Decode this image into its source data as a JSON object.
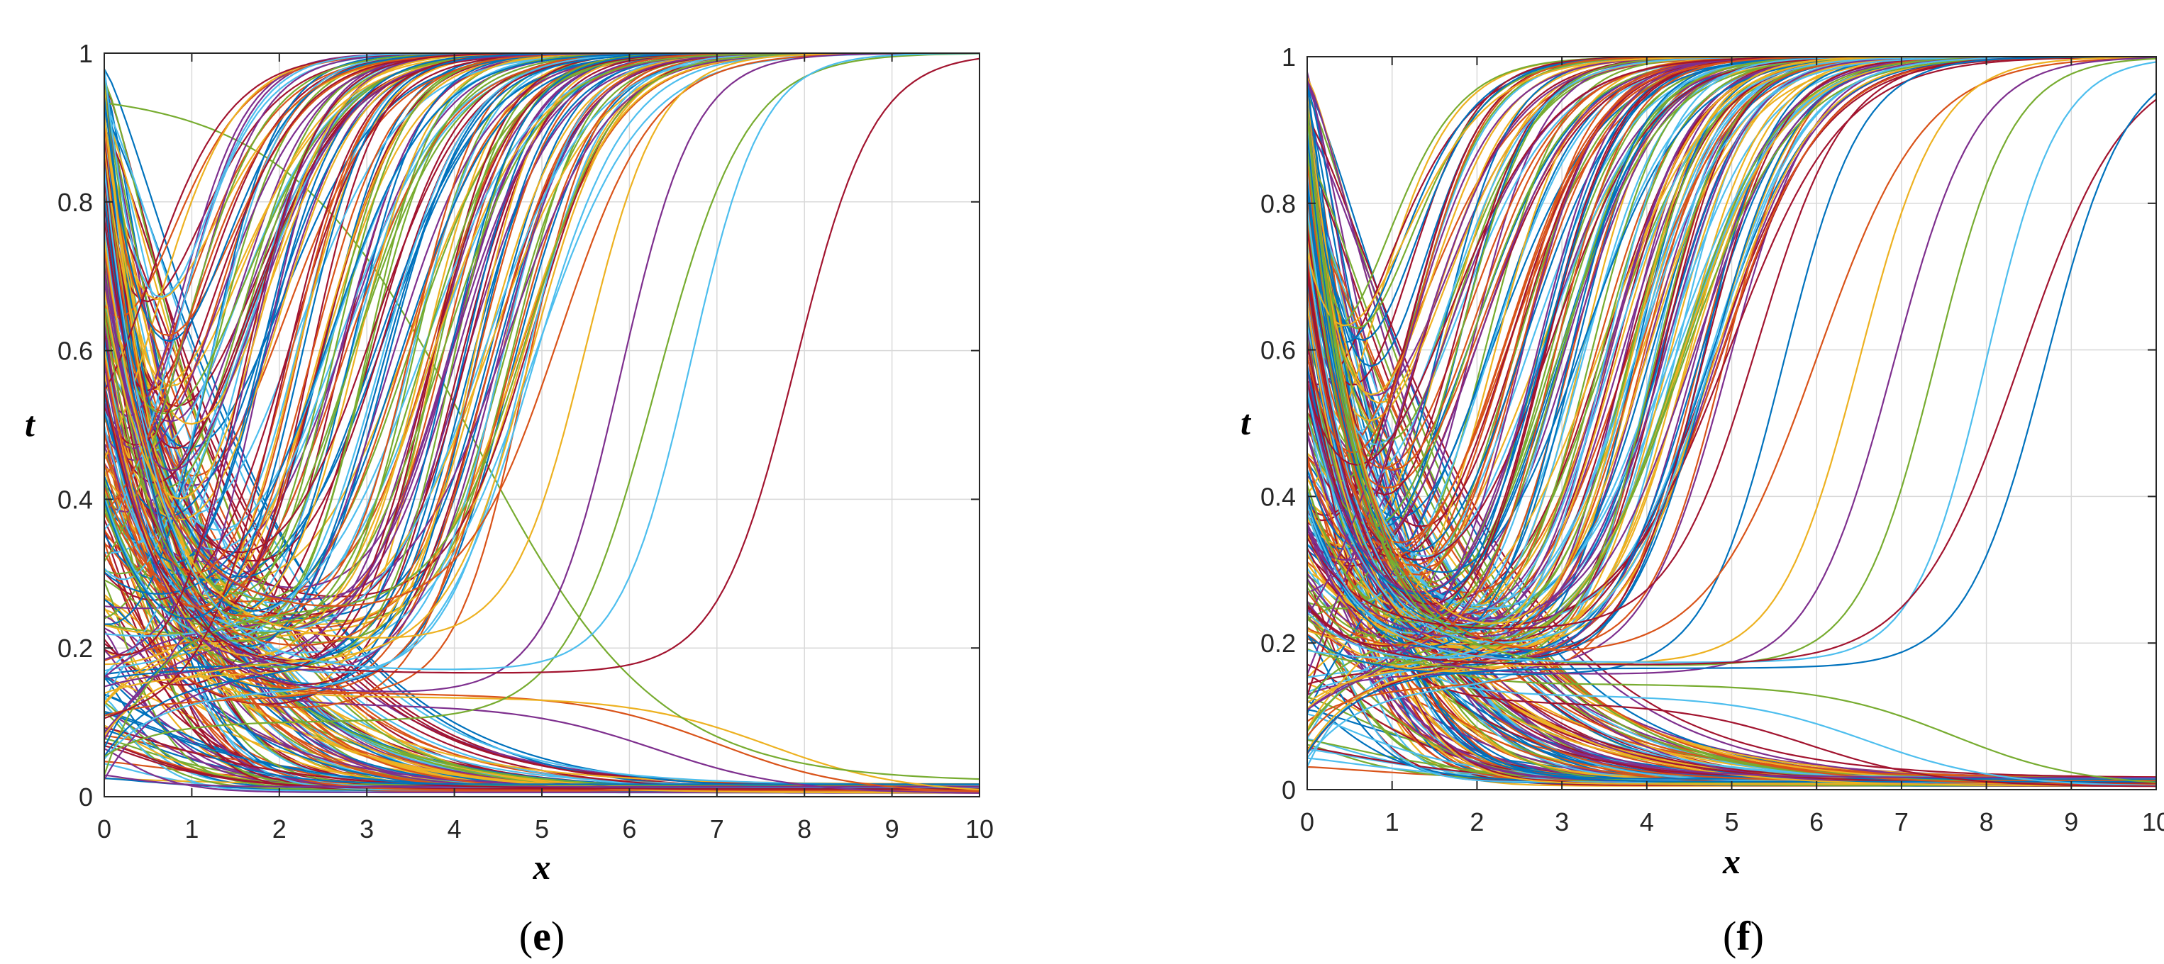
{
  "colors": [
    "#0072BD",
    "#D95319",
    "#EDB120",
    "#7E2F8E",
    "#77AC30",
    "#4DBEEE",
    "#A2142F"
  ],
  "chart_data": [
    {
      "type": "line",
      "panel_label": "(e)",
      "panel_letter": "e",
      "xlabel": "x",
      "ylabel": "t",
      "xlim": [
        0,
        10
      ],
      "ylim": [
        0,
        1
      ],
      "xticks": [
        "0",
        "1",
        "2",
        "3",
        "4",
        "5",
        "6",
        "7",
        "8",
        "9",
        "10"
      ],
      "yticks": [
        "0",
        "0.2",
        "0.4",
        "0.6",
        "0.8",
        "1"
      ],
      "grid": true,
      "description_family": "many logistic-type curves t(x); rising family crossing t=0.5 at x between 0 and 8, falling family decaying to 0",
      "rising_curves": {
        "count": 150,
        "midpoint_min": 0.2,
        "midpoint_max": 4.9,
        "outlier_midpoints": [
          5.2,
          5.5,
          5.9,
          6.3,
          6.7,
          7.9
        ],
        "steepness_min": 1.6,
        "steepness_max": 2.6,
        "base_min": 0.1,
        "base_max": 0.26
      },
      "falling_curves": {
        "count": 120,
        "start_min": 0.02,
        "start_max": 0.98,
        "decay_scale_min": 0.35,
        "decay_scale_max": 1.3,
        "plateau_curves": [
          {
            "level": 0.135,
            "midpoint": 7.0
          },
          {
            "level": 0.13,
            "midpoint": 7.6
          },
          {
            "level": 0.12,
            "midpoint": 6.3
          }
        ],
        "diagonal_curve": {
          "start": 0.95,
          "midpoint": 4.2,
          "end": 0.02
        }
      }
    },
    {
      "type": "line",
      "panel_label": "(f)",
      "panel_letter": "f",
      "xlabel": "x",
      "ylabel": "t",
      "xlim": [
        0,
        10
      ],
      "ylim": [
        0,
        1
      ],
      "xticks": [
        "0",
        "1",
        "2",
        "3",
        "4",
        "5",
        "6",
        "7",
        "8",
        "9",
        "10"
      ],
      "yticks": [
        "0",
        "0.2",
        "0.4",
        "0.6",
        "0.8",
        "1"
      ],
      "grid": true,
      "description_family": "many logistic-type curves t(x); rising family crossing t=0.5 at x between 0.5 and 8.6, falling family decaying to 0",
      "rising_curves": {
        "count": 160,
        "midpoint_min": 0.6,
        "midpoint_max": 5.0,
        "outlier_midpoints": [
          5.3,
          5.6,
          6.0,
          6.5,
          6.9,
          7.4,
          8.0,
          8.4,
          8.7
        ],
        "steepness_min": 1.5,
        "steepness_max": 2.4,
        "base_min": 0.14,
        "base_max": 0.22
      },
      "falling_curves": {
        "count": 130,
        "start_min": 0.02,
        "start_max": 0.98,
        "decay_scale_min": 0.35,
        "decay_scale_max": 1.4,
        "plateau_curves": [
          {
            "level": 0.14,
            "midpoint": 7.6
          },
          {
            "level": 0.125,
            "midpoint": 6.6
          },
          {
            "level": 0.115,
            "midpoint": 5.9
          }
        ],
        "diagonal_curve": null
      }
    }
  ]
}
